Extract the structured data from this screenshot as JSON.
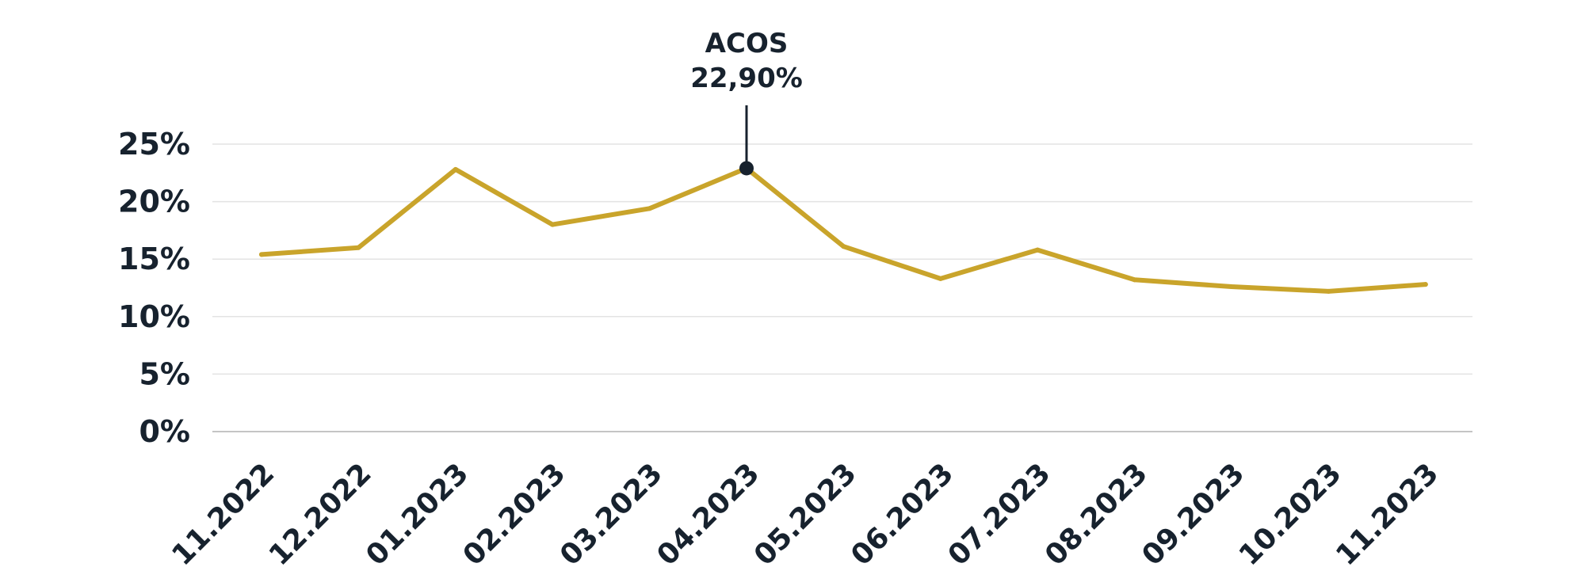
{
  "chart_data": {
    "type": "line",
    "title": "",
    "xlabel": "",
    "ylabel": "",
    "categories": [
      "11.2022",
      "12.2022",
      "01.2023",
      "02.2023",
      "03.2023",
      "04.2023",
      "05.2023",
      "06.2023",
      "07.2023",
      "08.2023",
      "09.2023",
      "10.2023",
      "11.2023"
    ],
    "series": [
      {
        "values": [
          15.4,
          16.0,
          22.8,
          18.0,
          19.4,
          22.9,
          16.1,
          13.3,
          15.8,
          13.2,
          12.6,
          12.2,
          12.8
        ]
      }
    ],
    "y_ticks": [
      "0%",
      "5%",
      "10%",
      "15%",
      "20%",
      "25%"
    ],
    "y_tick_values": [
      0,
      5,
      10,
      15,
      20,
      25
    ],
    "ylim": [
      0,
      25
    ],
    "grid": true,
    "legend": "none",
    "annotation": {
      "category": "04.2023",
      "label": "ACOS",
      "value_text": "22,90%"
    },
    "colors": {
      "line": "#c9a42b",
      "marker": "#17222e",
      "text": "#17222e",
      "grid": "#e3e3e3",
      "axis": "#c4c4c4"
    }
  }
}
